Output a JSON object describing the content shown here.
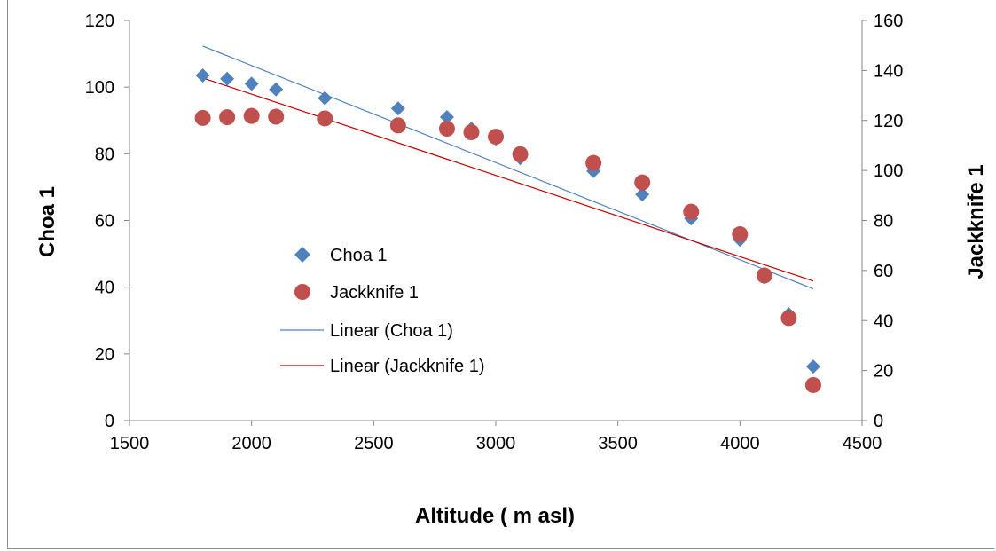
{
  "chart_data": {
    "type": "scatter",
    "xlabel": "Altitude ( m asl)",
    "ylabel": "Choa 1",
    "y2label": "Jackknife 1",
    "xlim": [
      1500,
      4500
    ],
    "xticks": [
      1500,
      2000,
      2500,
      3000,
      3500,
      4000,
      4500
    ],
    "ylim": [
      0,
      120
    ],
    "yticks": [
      0,
      20,
      40,
      60,
      80,
      100,
      120
    ],
    "y2lim": [
      0,
      160
    ],
    "y2ticks": [
      0,
      20,
      40,
      60,
      80,
      100,
      120,
      140,
      160
    ],
    "grid": false,
    "legend_position": "center-left",
    "series": [
      {
        "name": "Choa 1",
        "axis": "left",
        "marker": "diamond",
        "color": "#4f81bd",
        "x": [
          1800,
          1900,
          2000,
          2100,
          2300,
          2600,
          2800,
          2900,
          3000,
          3100,
          3400,
          3600,
          3800,
          4000,
          4100,
          4200,
          4300
        ],
        "y": [
          103.5,
          102.5,
          101,
          99.3,
          96.7,
          93.6,
          91,
          87.5,
          84.5,
          78.7,
          74.8,
          67.8,
          60.6,
          54.2,
          43,
          31.9,
          16.2
        ]
      },
      {
        "name": "Jackknife 1",
        "axis": "right",
        "marker": "circle",
        "color": "#c0504d",
        "x": [
          1800,
          1900,
          2000,
          2100,
          2300,
          2600,
          2800,
          2900,
          3000,
          3100,
          3400,
          3600,
          3800,
          4000,
          4100,
          4200,
          4300
        ],
        "y": [
          121,
          121.3,
          121.8,
          121.5,
          120.8,
          118,
          116.7,
          115.3,
          113.5,
          106.5,
          103,
          95.2,
          83.5,
          74.5,
          58,
          41,
          14.2
        ]
      },
      {
        "name": "Linear (Choa 1)",
        "axis": "left",
        "type": "line",
        "color": "#4f81bd",
        "x": [
          1800,
          4300
        ],
        "y": [
          112.3,
          39.5
        ]
      },
      {
        "name": "Linear (Jackknife 1)",
        "axis": "right",
        "type": "line",
        "color": "#c00000",
        "x": [
          1800,
          4300
        ],
        "y": [
          137,
          55.8
        ]
      }
    ]
  }
}
